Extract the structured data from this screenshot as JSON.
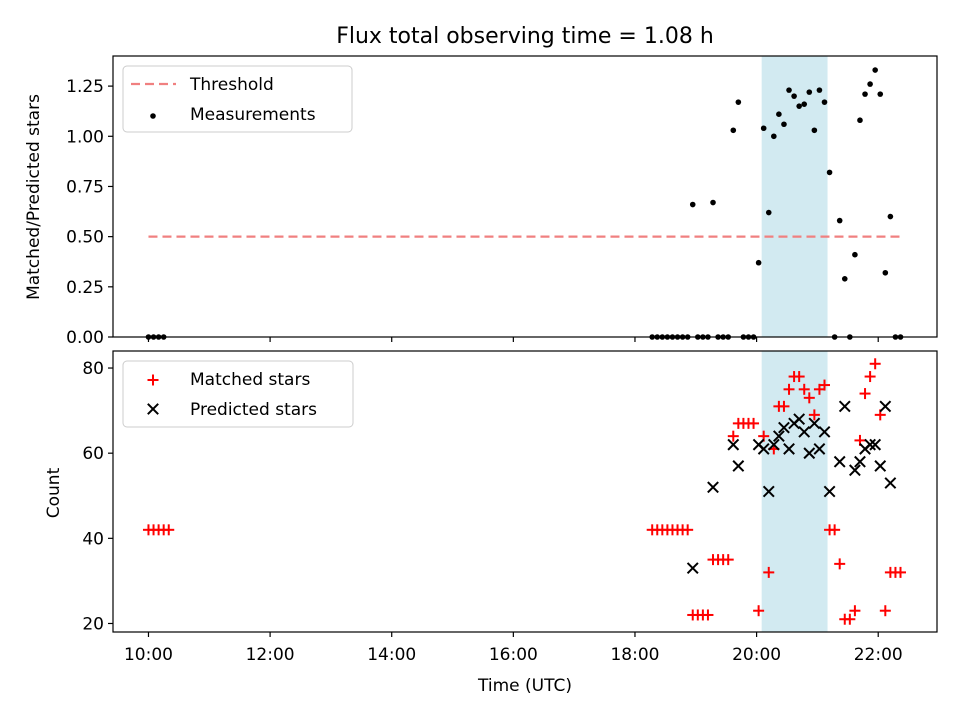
{
  "title": "Flux total observing time = 1.08 h",
  "colors": {
    "threshold": "#f08080",
    "measurement": "#000000",
    "matched": "#ff0000",
    "predicted": "#000000",
    "span": "#add8e6"
  },
  "chart_data": [
    {
      "type": "scatter",
      "ylabel": "Matched/Predicted stars",
      "ylim": [
        0,
        1.4
      ],
      "yticks": [
        0.0,
        0.25,
        0.5,
        0.75,
        1.0,
        1.25
      ],
      "ytick_labels": [
        "0.00",
        "0.25",
        "0.50",
        "0.75",
        "1.00",
        "1.25"
      ],
      "legend": {
        "placement": "upper-left",
        "entries": [
          "Threshold",
          "Measurements"
        ]
      },
      "shaded_span": {
        "x": [
          "20:05",
          "21:10"
        ]
      },
      "threshold": {
        "name": "Threshold",
        "y": 0.5,
        "x": [
          "10:00",
          "22:25"
        ]
      },
      "series": [
        {
          "name": "Measurements",
          "x": [
            "10:00",
            "10:05",
            "10:10",
            "10:15",
            "18:17",
            "18:22",
            "18:27",
            "18:32",
            "18:37",
            "18:42",
            "18:47",
            "18:52",
            "18:57",
            "19:02",
            "19:07",
            "19:12",
            "19:17",
            "19:22",
            "19:27",
            "19:32",
            "19:37",
            "19:42",
            "19:47",
            "19:52",
            "19:57",
            "20:02",
            "20:07",
            "20:12",
            "20:17",
            "20:22",
            "20:27",
            "20:32",
            "20:37",
            "20:42",
            "20:47",
            "20:52",
            "20:57",
            "21:02",
            "21:07",
            "21:12",
            "21:17",
            "21:22",
            "21:27",
            "21:32",
            "21:37",
            "21:42",
            "21:47",
            "21:52",
            "21:57",
            "22:02",
            "22:07",
            "22:12",
            "22:17",
            "22:22"
          ],
          "y": [
            0,
            0,
            0,
            0,
            0,
            0,
            0,
            0,
            0,
            0,
            0,
            0,
            0.66,
            0,
            0,
            0,
            0.67,
            0,
            0,
            0,
            1.03,
            1.17,
            0,
            0,
            0,
            0.37,
            1.04,
            0.62,
            1.0,
            1.11,
            1.06,
            1.23,
            1.2,
            1.15,
            1.16,
            1.22,
            1.03,
            1.23,
            1.17,
            0.82,
            0,
            0.58,
            0.29,
            0,
            0.41,
            1.08,
            1.21,
            1.26,
            1.33,
            1.21,
            0.32,
            0.6,
            0,
            0
          ]
        }
      ]
    },
    {
      "type": "scatter",
      "xlabel": "Time (UTC)",
      "ylabel": "Count",
      "xlim": [
        "09:25",
        "22:58"
      ],
      "ylim": [
        18,
        84
      ],
      "xticks": [
        "10:00",
        "12:00",
        "14:00",
        "16:00",
        "18:00",
        "20:00",
        "22:00"
      ],
      "yticks": [
        20,
        40,
        60,
        80
      ],
      "legend": {
        "placement": "upper-left",
        "entries": [
          "Matched stars",
          "Predicted stars"
        ]
      },
      "shaded_span": {
        "x": [
          "20:05",
          "21:10"
        ]
      },
      "series": [
        {
          "name": "Matched stars",
          "marker": "plus",
          "x": [
            "10:00",
            "10:05",
            "10:10",
            "10:15",
            "10:20",
            "18:17",
            "18:22",
            "18:27",
            "18:32",
            "18:37",
            "18:42",
            "18:47",
            "18:52",
            "18:57",
            "19:02",
            "19:07",
            "19:12",
            "19:17",
            "19:22",
            "19:27",
            "19:32",
            "19:37",
            "19:42",
            "19:47",
            "19:52",
            "19:57",
            "20:02",
            "20:07",
            "20:12",
            "20:17",
            "20:22",
            "20:27",
            "20:32",
            "20:37",
            "20:42",
            "20:47",
            "20:52",
            "20:57",
            "21:02",
            "21:07",
            "21:12",
            "21:17",
            "21:22",
            "21:27",
            "21:32",
            "21:37",
            "21:42",
            "21:47",
            "21:52",
            "21:57",
            "22:02",
            "22:07",
            "22:12",
            "22:17",
            "22:22"
          ],
          "y": [
            42,
            42,
            42,
            42,
            42,
            42,
            42,
            42,
            42,
            42,
            42,
            42,
            42,
            22,
            22,
            22,
            22,
            35,
            35,
            35,
            35,
            64,
            67,
            67,
            67,
            67,
            23,
            64,
            32,
            61,
            71,
            71,
            75,
            78,
            78,
            75,
            73,
            69,
            75,
            76,
            42,
            42,
            34,
            21,
            21,
            23,
            63,
            74,
            78,
            81,
            69,
            23,
            32,
            32,
            32
          ]
        },
        {
          "name": "Predicted stars",
          "marker": "x",
          "x": [
            "18:57",
            "19:17",
            "19:37",
            "19:42",
            "20:02",
            "20:07",
            "20:12",
            "20:17",
            "20:22",
            "20:27",
            "20:32",
            "20:37",
            "20:42",
            "20:47",
            "20:52",
            "20:57",
            "21:02",
            "21:07",
            "21:12",
            "21:22",
            "21:27",
            "21:37",
            "21:42",
            "21:47",
            "21:52",
            "21:57",
            "22:02",
            "22:07",
            "22:12"
          ],
          "y": [
            33,
            52,
            62,
            57,
            62,
            61,
            51,
            62,
            64,
            66,
            61,
            67,
            68,
            65,
            60,
            67,
            61,
            65,
            51,
            58,
            71,
            56,
            58,
            61,
            62,
            62,
            57,
            71,
            53
          ]
        }
      ]
    }
  ]
}
